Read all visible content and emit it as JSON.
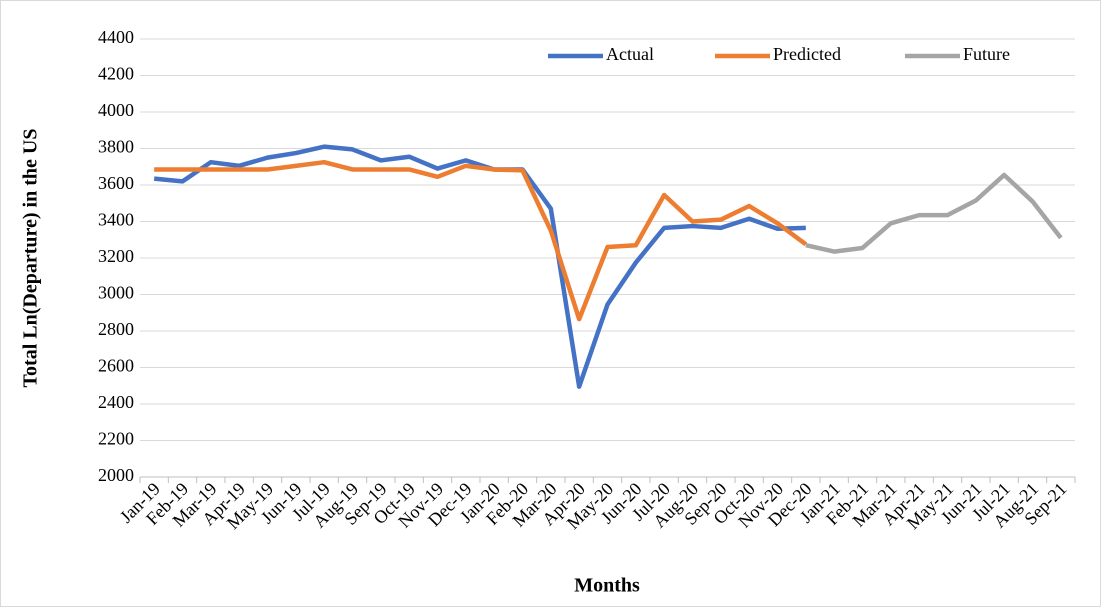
{
  "chart_data": {
    "type": "line",
    "x_label": "Months",
    "y_label": "Total Ln(Departure) in the US",
    "categories": [
      "Jan-19",
      "Feb-19",
      "Mar-19",
      "Apr-19",
      "May-19",
      "Jun-19",
      "Jul-19",
      "Aug-19",
      "Sep-19",
      "Oct-19",
      "Nov-19",
      "Dec-19",
      "Jan-20",
      "Feb-20",
      "Mar-20",
      "Apr-20",
      "May-20",
      "Jun-20",
      "Jul-20",
      "Aug-20",
      "Sep-20",
      "Oct-20",
      "Nov-20",
      "Dec-20",
      "Jan-21",
      "Feb-21",
      "Mar-21",
      "Apr-21",
      "May-21",
      "Jun-21",
      "Jul-21",
      "Aug-21",
      "Sep-21"
    ],
    "series": [
      {
        "name": "Actual",
        "color": "#4472c4",
        "values": [
          3635,
          3620,
          3725,
          3705,
          3750,
          3775,
          3810,
          3795,
          3735,
          3755,
          3690,
          3735,
          3685,
          3685,
          3470,
          2495,
          2945,
          3175,
          3365,
          3375,
          3365,
          3415,
          3360,
          3365,
          null,
          null,
          null,
          null,
          null,
          null,
          null,
          null,
          null
        ]
      },
      {
        "name": "Predicted",
        "color": "#ed7d31",
        "values": [
          3685,
          3685,
          3685,
          3685,
          3685,
          3705,
          3725,
          3685,
          3685,
          3685,
          3645,
          3705,
          3685,
          3680,
          3350,
          2865,
          3260,
          3270,
          3545,
          3400,
          3410,
          3485,
          3390,
          3275,
          null,
          null,
          null,
          null,
          null,
          null,
          null,
          null,
          null
        ]
      },
      {
        "name": "Future",
        "color": "#a5a5a5",
        "values": [
          null,
          null,
          null,
          null,
          null,
          null,
          null,
          null,
          null,
          null,
          null,
          null,
          null,
          null,
          null,
          null,
          null,
          null,
          null,
          null,
          null,
          null,
          null,
          3270,
          3235,
          3255,
          3390,
          3435,
          3435,
          3515,
          3655,
          3510,
          3310
        ]
      }
    ],
    "ylim": [
      2000,
      4400
    ],
    "yticks": [
      2000,
      2200,
      2400,
      2600,
      2800,
      3000,
      3200,
      3400,
      3600,
      3800,
      4000,
      4200,
      4400
    ],
    "grid": true,
    "legend": "top-right"
  }
}
